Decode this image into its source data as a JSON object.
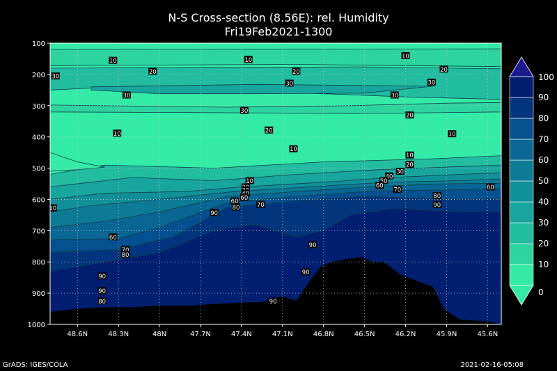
{
  "title": "N-S Cross-section (8.56E): rel. Humidity",
  "subtitle": "Fri19Feb2021-1300",
  "footer_left": "GrADS: IGES/COLA",
  "footer_right": "2021-02-16-05:08",
  "chart_data": {
    "type": "heatmap",
    "title": "N-S Cross-section (8.56E): rel. Humidity",
    "subtitle": "Fri19Feb2021-1300",
    "xlabel": "",
    "ylabel": "",
    "x_ticks": [
      "48.6N",
      "48.3N",
      "48N",
      "47.7N",
      "47.4N",
      "47.1N",
      "46.8N",
      "46.5N",
      "46.2N",
      "45.9N",
      "45.6N"
    ],
    "x_tick_values": [
      48.6,
      48.3,
      48.0,
      47.7,
      47.4,
      47.1,
      46.8,
      46.5,
      46.2,
      45.9,
      45.6
    ],
    "xlim": [
      48.8,
      45.5
    ],
    "y_ticks": [
      100,
      200,
      300,
      400,
      500,
      600,
      700,
      800,
      900,
      1000
    ],
    "ylim": [
      100,
      1000
    ],
    "y_direction": "pressure increasing downward",
    "grid": true,
    "colorbar": {
      "levels": [
        0,
        10,
        20,
        30,
        40,
        50,
        60,
        70,
        80,
        90,
        100
      ],
      "labels": [
        "0",
        "10",
        "20",
        "30",
        "40",
        "50",
        "60",
        "70",
        "80",
        "90",
        "100"
      ],
      "colors": [
        "#33EBA6",
        "#2DD49E",
        "#22BCA0",
        "#18A59E",
        "#12909A",
        "#0E7B96",
        "#0A6692",
        "#05508E",
        "#03357E",
        "#021E70",
        "#1A1A90"
      ],
      "placement": "right"
    },
    "contour_labels": [
      {
        "x": 48.34,
        "p": 155,
        "v": "10"
      },
      {
        "x": 47.35,
        "p": 152,
        "v": "10"
      },
      {
        "x": 46.2,
        "p": 140,
        "v": "10"
      },
      {
        "x": 48.05,
        "p": 190,
        "v": "20"
      },
      {
        "x": 47.0,
        "p": 190,
        "v": "20"
      },
      {
        "x": 45.92,
        "p": 183,
        "v": "20"
      },
      {
        "x": 48.76,
        "p": 205,
        "v": "30"
      },
      {
        "x": 47.05,
        "p": 228,
        "v": "30"
      },
      {
        "x": 46.01,
        "p": 225,
        "v": "30"
      },
      {
        "x": 48.24,
        "p": 266,
        "v": "30"
      },
      {
        "x": 46.28,
        "p": 266,
        "v": "30"
      },
      {
        "x": 47.38,
        "p": 315,
        "v": "30"
      },
      {
        "x": 46.17,
        "p": 330,
        "v": "20"
      },
      {
        "x": 47.2,
        "p": 378,
        "v": "20"
      },
      {
        "x": 48.31,
        "p": 388,
        "v": "10"
      },
      {
        "x": 45.86,
        "p": 390,
        "v": "10"
      },
      {
        "x": 47.02,
        "p": 438,
        "v": "10"
      },
      {
        "x": 46.17,
        "p": 458,
        "v": "10"
      },
      {
        "x": 46.17,
        "p": 488,
        "v": "20"
      },
      {
        "x": 46.24,
        "p": 510,
        "v": "30"
      },
      {
        "x": 46.32,
        "p": 525,
        "v": "40"
      },
      {
        "x": 46.36,
        "p": 540,
        "v": "50"
      },
      {
        "x": 46.39,
        "p": 555,
        "v": "60"
      },
      {
        "x": 47.34,
        "p": 540,
        "v": "10"
      },
      {
        "x": 47.37,
        "p": 560,
        "v": "20"
      },
      {
        "x": 47.37,
        "p": 570,
        "v": "30"
      },
      {
        "x": 47.37,
        "p": 580,
        "v": "40"
      },
      {
        "x": 47.38,
        "p": 593,
        "v": "60"
      },
      {
        "x": 47.45,
        "p": 605,
        "v": "60"
      },
      {
        "x": 47.26,
        "p": 616,
        "v": "70"
      },
      {
        "x": 47.44,
        "p": 625,
        "v": "80"
      },
      {
        "x": 47.6,
        "p": 642,
        "v": "90"
      },
      {
        "x": 46.26,
        "p": 568,
        "v": "70"
      },
      {
        "x": 45.97,
        "p": 588,
        "v": "80"
      },
      {
        "x": 45.97,
        "p": 617,
        "v": "90"
      },
      {
        "x": 45.58,
        "p": 560,
        "v": "60"
      },
      {
        "x": 48.78,
        "p": 627,
        "v": "10"
      },
      {
        "x": 48.34,
        "p": 720,
        "v": "60"
      },
      {
        "x": 48.25,
        "p": 760,
        "v": "70"
      },
      {
        "x": 48.25,
        "p": 776,
        "v": "80"
      },
      {
        "x": 46.88,
        "p": 745,
        "v": "90"
      },
      {
        "x": 46.93,
        "p": 832,
        "v": "90"
      },
      {
        "x": 48.42,
        "p": 845,
        "v": "90"
      },
      {
        "x": 48.42,
        "p": 892,
        "v": "90"
      },
      {
        "x": 48.42,
        "p": 925,
        "v": "80"
      },
      {
        "x": 47.17,
        "p": 925,
        "v": "90"
      }
    ],
    "terrain_surface_pressure": [
      [
        48.8,
        960
      ],
      [
        48.6,
        950
      ],
      [
        48.4,
        945
      ],
      [
        48.2,
        945
      ],
      [
        48.0,
        940
      ],
      [
        47.8,
        940
      ],
      [
        47.6,
        935
      ],
      [
        47.4,
        930
      ],
      [
        47.25,
        928
      ],
      [
        47.1,
        910
      ],
      [
        47.0,
        925
      ],
      [
        46.9,
        860
      ],
      [
        46.82,
        815
      ],
      [
        46.74,
        800
      ],
      [
        46.62,
        790
      ],
      [
        46.52,
        785
      ],
      [
        46.44,
        800
      ],
      [
        46.36,
        800
      ],
      [
        46.24,
        840
      ],
      [
        46.12,
        860
      ],
      [
        46.0,
        880
      ],
      [
        45.92,
        950
      ],
      [
        45.8,
        985
      ],
      [
        45.6,
        990
      ],
      [
        45.5,
        1000
      ]
    ]
  }
}
